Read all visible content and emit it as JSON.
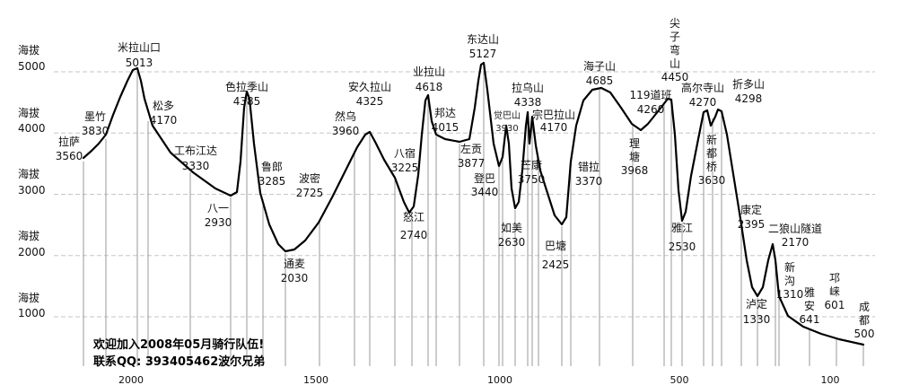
{
  "y_axis": {
    "unit_label": "海拔",
    "ticks": [
      {
        "label": "5000",
        "value": 5000
      },
      {
        "label": "4000",
        "value": 4000
      },
      {
        "label": "3000",
        "value": 3000
      },
      {
        "label": "2000",
        "value": 2000
      },
      {
        "label": "1000",
        "value": 1000
      }
    ]
  },
  "x_axis": {
    "ticks": [
      {
        "label": "2000",
        "km": 2000
      },
      {
        "label": "1500",
        "km": 1500
      },
      {
        "label": "1000",
        "km": 1000
      },
      {
        "label": "500",
        "km": 500
      },
      {
        "label": "100",
        "km": 100
      }
    ]
  },
  "sites": [
    {
      "name": "拉萨",
      "elev": "3560"
    },
    {
      "name": "墨竹",
      "elev": "3830"
    },
    {
      "name": "米拉山口",
      "elev": "5013"
    },
    {
      "name": "松多",
      "elev": "4170"
    },
    {
      "name": "工布江达",
      "elev": "3330"
    },
    {
      "name": "八一",
      "elev": "2930"
    },
    {
      "name": "色拉季山",
      "elev": "4385"
    },
    {
      "name": "鲁郎",
      "elev": "3285"
    },
    {
      "name": "通麦",
      "elev": "2030"
    },
    {
      "name": "波密",
      "elev": "2725"
    },
    {
      "name": "然乌",
      "elev": "3960"
    },
    {
      "name": "安久拉山",
      "elev": "4325"
    },
    {
      "name": "八宿",
      "elev": "3225"
    },
    {
      "name": "怒江",
      "elev": "2740"
    },
    {
      "name": "业拉山",
      "elev": "4618"
    },
    {
      "name": "邦达",
      "elev": "4015"
    },
    {
      "name": "左贡",
      "elev": "3877"
    },
    {
      "name": "东达山",
      "elev": "5127"
    },
    {
      "name": "觉巴山",
      "elev": "3930"
    },
    {
      "name": "登巴",
      "elev": "3440"
    },
    {
      "name": "如美",
      "elev": "2630"
    },
    {
      "name": "拉乌山",
      "elev": "4338"
    },
    {
      "name": "芒康",
      "elev": "3750"
    },
    {
      "name": "宗巴拉山",
      "elev": "4170"
    },
    {
      "name": "巴塘",
      "elev": "2425"
    },
    {
      "name": "错拉",
      "elev": "3370"
    },
    {
      "name": "海子山",
      "elev": "4685"
    },
    {
      "name": "理塘",
      "elev": "3968"
    },
    {
      "name": "119道班",
      "elev": "4260"
    },
    {
      "name": "尖子弯山",
      "elev": "4450"
    },
    {
      "name": "雅江",
      "elev": "2530"
    },
    {
      "name": "高尔寺山",
      "elev": "4270"
    },
    {
      "name": "新都桥",
      "elev": "3630"
    },
    {
      "name": "折多山",
      "elev": "4298"
    },
    {
      "name": "康定",
      "elev": "2395"
    },
    {
      "name": "泸定",
      "elev": "1330"
    },
    {
      "name": "二狼山隧道",
      "elev": "2170"
    },
    {
      "name": "新沟",
      "elev": "1310"
    },
    {
      "name": "雅安",
      "elev": "641"
    },
    {
      "name": "邛崃",
      "elev": "601"
    },
    {
      "name": "成都",
      "elev": "500"
    }
  ],
  "note": {
    "line1": "欢迎加入2008年05月骑行队伍!",
    "line2": "联系QQ: 393405462波尔兄弟"
  }
}
